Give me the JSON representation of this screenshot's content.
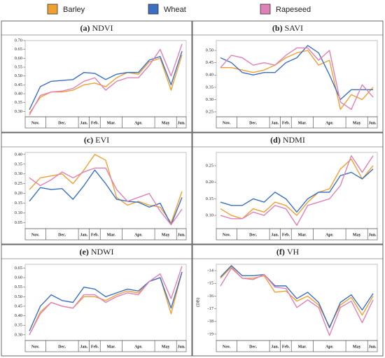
{
  "legend": [
    {
      "name": "Barley",
      "color": "#f0a030"
    },
    {
      "name": "Wheat",
      "color": "#3a6fc4"
    },
    {
      "name": "Rapeseed",
      "color": "#e080b8"
    }
  ],
  "chart_data": [
    {
      "type": "line",
      "panel": "(a)",
      "title": "NDVI",
      "categories": [
        "Nov.",
        null,
        "Dec.",
        null,
        null,
        "Jan.",
        "Feb.",
        "Mar.",
        null,
        "Apr.",
        null,
        null,
        "May",
        null,
        "Jun."
      ],
      "ylim": [
        0.27,
        0.7
      ],
      "yticks": [
        {
          "value": 0.3,
          "label": "0.30"
        },
        {
          "value": 0.35,
          "label": "0.35"
        },
        {
          "value": 0.4,
          "label": "0.40"
        },
        {
          "value": 0.45,
          "label": "0.45"
        },
        {
          "value": 0.5,
          "label": "0.50"
        },
        {
          "value": 0.55,
          "label": "0.55"
        },
        {
          "value": 0.6,
          "label": "0.60"
        },
        {
          "value": 0.65,
          "label": "0.65"
        },
        {
          "value": 0.7,
          "label": "0.70"
        }
      ],
      "series": [
        {
          "values": [
            0.29,
            0.38,
            0.41,
            0.41,
            0.42,
            0.45,
            0.46,
            0.44,
            0.49,
            0.52,
            0.51,
            0.58,
            0.6,
            0.42,
            0.62
          ]
        },
        {
          "values": [
            0.31,
            0.44,
            0.47,
            0.475,
            0.48,
            0.52,
            0.515,
            0.48,
            0.51,
            0.52,
            0.52,
            0.59,
            0.61,
            0.45,
            0.64
          ]
        },
        {
          "values": [
            0.28,
            0.39,
            0.41,
            0.415,
            0.43,
            0.47,
            0.49,
            0.42,
            0.47,
            0.49,
            0.49,
            0.56,
            0.65,
            0.5,
            0.68
          ]
        }
      ]
    },
    {
      "type": "line",
      "panel": "(b)",
      "title": "SAVI",
      "categories": [
        "Nov.",
        null,
        "Dec.",
        null,
        null,
        "Jan.",
        "Feb.",
        "Mar.",
        null,
        "Apr.",
        null,
        null,
        "May",
        null,
        "Jun."
      ],
      "ylim": [
        0.23,
        0.54
      ],
      "yticks": [
        {
          "value": 0.25,
          "label": "0.25"
        },
        {
          "value": 0.3,
          "label": "0.30"
        },
        {
          "value": 0.35,
          "label": "0.35"
        },
        {
          "value": 0.4,
          "label": "0.40"
        },
        {
          "value": 0.45,
          "label": "0.45"
        },
        {
          "value": 0.5,
          "label": "0.50"
        }
      ],
      "series": [
        {
          "values": [
            0.43,
            0.43,
            0.42,
            0.41,
            0.42,
            0.44,
            0.47,
            0.49,
            0.5,
            0.44,
            0.46,
            0.26,
            0.32,
            0.3,
            0.35
          ]
        },
        {
          "values": [
            0.47,
            0.45,
            0.41,
            0.4,
            0.41,
            0.41,
            0.45,
            0.47,
            0.52,
            0.49,
            0.4,
            0.3,
            0.34,
            0.34,
            0.34
          ]
        },
        {
          "values": [
            0.43,
            0.48,
            0.47,
            0.44,
            0.45,
            0.44,
            0.48,
            0.51,
            0.51,
            0.46,
            0.5,
            0.29,
            0.26,
            0.36,
            0.31
          ]
        }
      ]
    },
    {
      "type": "line",
      "panel": "(c)",
      "title": "EVI",
      "categories": [
        "Nov.",
        null,
        "Dec.",
        null,
        null,
        "Jan.",
        "Feb.",
        "Mar.",
        null,
        "Apr.",
        null,
        null,
        "May",
        null,
        "Jun."
      ],
      "ylim": [
        0.02,
        0.41
      ],
      "yticks": [
        0.05,
        {
          "value": 0.1,
          "label": "0.10"
        },
        0.15,
        {
          "value": 0.2,
          "label": "0.20"
        },
        0.25,
        {
          "value": 0.3,
          "label": "0.30"
        },
        0.35,
        {
          "value": 0.4,
          "label": "0.40"
        }
      ],
      "series": [
        {
          "values": [
            0.22,
            0.28,
            0.29,
            0.3,
            0.25,
            0.32,
            0.4,
            0.37,
            0.18,
            0.14,
            0.16,
            0.14,
            0.13,
            0.05,
            0.21
          ]
        },
        {
          "values": [
            0.16,
            0.23,
            0.22,
            0.225,
            0.17,
            0.24,
            0.32,
            0.25,
            0.17,
            0.16,
            0.155,
            0.13,
            0.15,
            0.04,
            0.18
          ]
        },
        {
          "values": [
            0.28,
            0.24,
            0.27,
            0.31,
            0.28,
            0.31,
            0.33,
            0.33,
            0.22,
            0.16,
            0.18,
            0.2,
            0.11,
            0.04,
            0.12
          ]
        }
      ]
    },
    {
      "type": "line",
      "panel": "(d)",
      "title": "NDMI",
      "categories": [
        "Nov.",
        null,
        "Dec.",
        null,
        null,
        "Jan.",
        "Feb.",
        "Mar.",
        null,
        "Apr.",
        null,
        null,
        "May",
        null,
        "Jun."
      ],
      "ylim": [
        0.06,
        0.29
      ],
      "yticks": [
        {
          "value": 0.1,
          "label": "0.10"
        },
        0.15,
        {
          "value": 0.2,
          "label": "0.20"
        },
        0.25
      ],
      "series": [
        {
          "values": [
            0.12,
            0.1,
            0.09,
            0.12,
            0.11,
            0.14,
            0.13,
            0.1,
            0.14,
            0.17,
            0.18,
            0.24,
            0.27,
            0.21,
            0.25
          ]
        },
        {
          "values": [
            0.14,
            0.13,
            0.13,
            0.15,
            0.14,
            0.17,
            0.15,
            0.11,
            0.15,
            0.17,
            0.17,
            0.22,
            0.23,
            0.21,
            0.24
          ]
        },
        {
          "values": [
            0.1,
            0.09,
            0.09,
            0.11,
            0.1,
            0.13,
            0.12,
            0.07,
            0.13,
            0.14,
            0.15,
            0.19,
            0.28,
            0.23,
            0.28
          ]
        }
      ]
    },
    {
      "type": "line",
      "panel": "(e)",
      "title": "NDWI",
      "categories": [
        "Nov.",
        null,
        "Dec.",
        null,
        null,
        "Jan.",
        "Feb.",
        "Mar.",
        null,
        "Apr.",
        null,
        null,
        "May",
        null,
        "Jun."
      ],
      "ylim": [
        0.27,
        0.67
      ],
      "yticks": [
        {
          "value": 0.3,
          "label": "0.30"
        },
        0.35,
        {
          "value": 0.4,
          "label": "0.40"
        },
        0.45,
        {
          "value": 0.5,
          "label": "0.50"
        },
        0.55,
        {
          "value": 0.6,
          "label": "0.60"
        },
        0.65
      ],
      "series": [
        {
          "values": [
            0.3,
            0.42,
            0.47,
            0.45,
            0.44,
            0.5,
            0.5,
            0.48,
            0.51,
            0.53,
            0.52,
            0.58,
            0.6,
            0.41,
            0.63
          ]
        },
        {
          "values": [
            0.32,
            0.45,
            0.51,
            0.48,
            0.47,
            0.55,
            0.54,
            0.5,
            0.52,
            0.54,
            0.53,
            0.58,
            0.6,
            0.44,
            0.63
          ]
        },
        {
          "values": [
            0.3,
            0.41,
            0.47,
            0.45,
            0.44,
            0.51,
            0.51,
            0.47,
            0.5,
            0.52,
            0.51,
            0.58,
            0.62,
            0.49,
            0.66
          ]
        }
      ]
    },
    {
      "type": "line",
      "panel": "(f)",
      "title": "VH",
      "ylabel": "(DB)",
      "categories": [
        "Nov.",
        null,
        "Dec.",
        null,
        null,
        "Jan.",
        "Feb.",
        "Mar.",
        null,
        "Apr.",
        null,
        null,
        "May",
        null,
        "Jun."
      ],
      "ylim": [
        -19.5,
        -13.5
      ],
      "yticks": [
        -19,
        -18,
        -17,
        -16,
        -15,
        -14
      ],
      "series": [
        {
          "values": [
            -14.6,
            -13.7,
            -14.6,
            -14.6,
            -14.4,
            -15.7,
            -15.6,
            -16.4,
            -16.0,
            -16.7,
            -18.4,
            -16.7,
            -16.1,
            -17.5,
            -16.0
          ]
        },
        {
          "values": [
            -14.5,
            -13.6,
            -14.4,
            -14.4,
            -14.3,
            -15.2,
            -15.2,
            -16.2,
            -15.7,
            -16.5,
            -18.5,
            -16.5,
            -15.9,
            -17.1,
            -15.8
          ]
        },
        {
          "values": [
            -15.2,
            -13.8,
            -14.6,
            -14.7,
            -14.3,
            -15.3,
            -15.4,
            -16.9,
            -16.3,
            -16.9,
            -19.1,
            -16.9,
            -16.4,
            -18.1,
            -16.3
          ]
        }
      ]
    }
  ]
}
